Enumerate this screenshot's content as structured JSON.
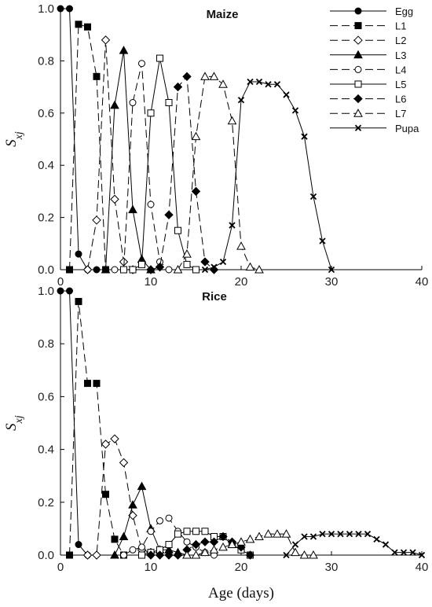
{
  "chart_data": [
    {
      "type": "line",
      "title": "Maize",
      "ylabel": "Sxj",
      "xlabel": "",
      "xlim": [
        0,
        40
      ],
      "ylim": [
        0,
        1.0
      ],
      "xticks": [
        "0",
        "10",
        "20",
        "30",
        "40"
      ],
      "yticks": [
        "0.0",
        "0.2",
        "0.4",
        "0.6",
        "0.8",
        "1.0"
      ],
      "grid": false,
      "legend": "top-right",
      "series": [
        {
          "name": "Egg",
          "marker": "circle-filled",
          "dash": "solid",
          "x": [
            0,
            1,
            2,
            3,
            4,
            5
          ],
          "y": [
            1.0,
            1.0,
            0.06,
            0.0,
            0.0,
            0.0
          ]
        },
        {
          "name": "L1",
          "marker": "square-filled",
          "dash": "dashed",
          "x": [
            1,
            2,
            3,
            4,
            5
          ],
          "y": [
            0.0,
            0.94,
            0.93,
            0.74,
            0.0
          ]
        },
        {
          "name": "L2",
          "marker": "diamond-open",
          "dash": "dashed",
          "x": [
            3,
            4,
            5,
            6,
            7,
            8
          ],
          "y": [
            0.0,
            0.19,
            0.88,
            0.27,
            0.03,
            0.0
          ]
        },
        {
          "name": "L3",
          "marker": "triangle-filled",
          "dash": "solid",
          "x": [
            5,
            6,
            7,
            8,
            9,
            10
          ],
          "y": [
            0.0,
            0.63,
            0.84,
            0.23,
            0.04,
            0.0
          ]
        },
        {
          "name": "L4",
          "marker": "circle-open",
          "dash": "dashed",
          "x": [
            6,
            7,
            8,
            9,
            10,
            11,
            12
          ],
          "y": [
            0.0,
            0.0,
            0.64,
            0.79,
            0.25,
            0.03,
            0.0
          ]
        },
        {
          "name": "L5",
          "marker": "square-open",
          "dash": "solid",
          "x": [
            7,
            8,
            9,
            10,
            11,
            12,
            13,
            14,
            15
          ],
          "y": [
            0.0,
            0.0,
            0.02,
            0.6,
            0.81,
            0.64,
            0.15,
            0.02,
            0.0
          ]
        },
        {
          "name": "L6",
          "marker": "diamond-filled",
          "dash": "dashed",
          "x": [
            10,
            11,
            12,
            13,
            14,
            15,
            16,
            17
          ],
          "y": [
            0.0,
            0.01,
            0.21,
            0.7,
            0.74,
            0.3,
            0.03,
            0.0
          ]
        },
        {
          "name": "L7",
          "marker": "triangle-open",
          "dash": "dashed",
          "x": [
            13,
            14,
            15,
            16,
            17,
            18,
            19,
            20,
            21,
            22
          ],
          "y": [
            0.0,
            0.06,
            0.51,
            0.74,
            0.74,
            0.71,
            0.57,
            0.09,
            0.01,
            0.0
          ]
        },
        {
          "name": "Pupa",
          "marker": "cross",
          "dash": "solid",
          "x": [
            16,
            17,
            18,
            19,
            20,
            21,
            22,
            23,
            24,
            25,
            26,
            27,
            28,
            29,
            30
          ],
          "y": [
            0.0,
            0.01,
            0.03,
            0.17,
            0.65,
            0.72,
            0.72,
            0.71,
            0.71,
            0.67,
            0.61,
            0.51,
            0.28,
            0.11,
            0.0
          ]
        }
      ]
    },
    {
      "type": "line",
      "title": "Rice",
      "ylabel": "Sxj",
      "xlabel": "Age (days)",
      "xlim": [
        0,
        40
      ],
      "ylim": [
        0,
        1.0
      ],
      "xticks": [
        "0",
        "10",
        "20",
        "30",
        "40"
      ],
      "yticks": [
        "0.0",
        "0.2",
        "0.4",
        "0.6",
        "0.8",
        "1.0"
      ],
      "grid": false,
      "series": [
        {
          "name": "Egg",
          "marker": "circle-filled",
          "dash": "solid",
          "x": [
            0,
            1,
            2,
            3
          ],
          "y": [
            1.0,
            1.0,
            0.04,
            0.0
          ]
        },
        {
          "name": "L1",
          "marker": "square-filled",
          "dash": "dashed",
          "x": [
            1,
            2,
            3,
            4,
            5,
            6,
            7
          ],
          "y": [
            0.0,
            0.96,
            0.65,
            0.65,
            0.23,
            0.06,
            0.0
          ]
        },
        {
          "name": "L2",
          "marker": "diamond-open",
          "dash": "dashed",
          "x": [
            3,
            4,
            5,
            6,
            7,
            8,
            9,
            10
          ],
          "y": [
            0.0,
            0.0,
            0.42,
            0.44,
            0.35,
            0.15,
            0.02,
            0.01
          ]
        },
        {
          "name": "L3",
          "marker": "triangle-filled",
          "dash": "solid",
          "x": [
            6,
            7,
            8,
            9,
            10,
            11,
            12,
            13,
            14
          ],
          "y": [
            0.0,
            0.07,
            0.19,
            0.26,
            0.1,
            0.02,
            0.02,
            0.01,
            0.0
          ]
        },
        {
          "name": "L4",
          "marker": "circle-open",
          "dash": "dashed",
          "x": [
            7,
            8,
            9,
            10,
            11,
            12,
            13,
            14,
            15,
            16,
            17
          ],
          "y": [
            0.0,
            0.02,
            0.03,
            0.09,
            0.13,
            0.14,
            0.09,
            0.05,
            0.03,
            0.01,
            0.0
          ]
        },
        {
          "name": "L5",
          "marker": "square-open",
          "dash": "solid",
          "x": [
            9,
            10,
            11,
            12,
            13,
            14,
            15,
            16,
            17,
            18,
            19,
            20,
            21
          ],
          "y": [
            0.0,
            0.01,
            0.02,
            0.04,
            0.08,
            0.09,
            0.09,
            0.09,
            0.07,
            0.07,
            0.04,
            0.02,
            0.0
          ]
        },
        {
          "name": "L6",
          "marker": "diamond-filled",
          "dash": "dashed",
          "x": [
            10,
            11,
            12,
            13,
            14,
            15,
            16,
            17,
            18,
            19,
            20,
            21
          ],
          "y": [
            0.0,
            0.0,
            0.0,
            0.0,
            0.02,
            0.04,
            0.05,
            0.05,
            0.07,
            0.05,
            0.03,
            0.0
          ]
        },
        {
          "name": "L7",
          "marker": "triangle-open",
          "dash": "dashed",
          "x": [
            14,
            15,
            16,
            17,
            18,
            19,
            20,
            21,
            22,
            23,
            24,
            25,
            26,
            27,
            28
          ],
          "y": [
            0.0,
            0.0,
            0.01,
            0.02,
            0.03,
            0.04,
            0.05,
            0.06,
            0.07,
            0.08,
            0.08,
            0.08,
            0.01,
            0.0,
            0.0
          ]
        },
        {
          "name": "Pupa",
          "marker": "cross",
          "dash": "solid",
          "x": [
            25,
            26,
            27,
            28,
            29,
            30,
            31,
            32,
            33,
            34,
            35,
            36,
            37,
            38,
            39,
            40
          ],
          "y": [
            0.0,
            0.04,
            0.07,
            0.07,
            0.08,
            0.08,
            0.08,
            0.08,
            0.08,
            0.08,
            0.06,
            0.04,
            0.01,
            0.01,
            0.01,
            0.0
          ]
        }
      ]
    }
  ]
}
